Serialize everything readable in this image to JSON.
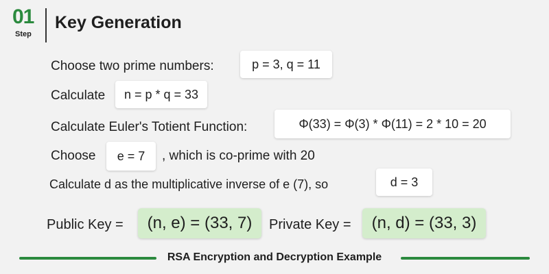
{
  "header": {
    "step_number": "01",
    "step_label": "Step",
    "title": "Key Generation"
  },
  "rows": {
    "choose_primes_label": "Choose two prime numbers:",
    "choose_primes_value": "p = 3, q = 11",
    "calculate_label": "Calculate",
    "calculate_value": "n = p * q = 33",
    "totient_label": "Calculate Euler's Totient Function:",
    "totient_value": "Φ(33) = Φ(3) * Φ(11) = 2 * 10 = 20",
    "choose_label": "Choose",
    "choose_value": "e = 7",
    "choose_suffix": ", which is co-prime with 20",
    "inverse_label": "Calculate d as the multiplicative inverse of e (7), so",
    "inverse_value": "d = 3"
  },
  "keys": {
    "public_label": "Public Key =",
    "public_value": "(n, e) = (33, 7)",
    "private_label": "Private Key =",
    "private_value": "(n, d) = (33, 3)"
  },
  "footer": {
    "caption": "RSA Encryption and Decryption Example"
  },
  "colors": {
    "accent_green": "#2b8a3e",
    "key_box_green": "#d4edcc",
    "background": "#f2f2f2"
  }
}
